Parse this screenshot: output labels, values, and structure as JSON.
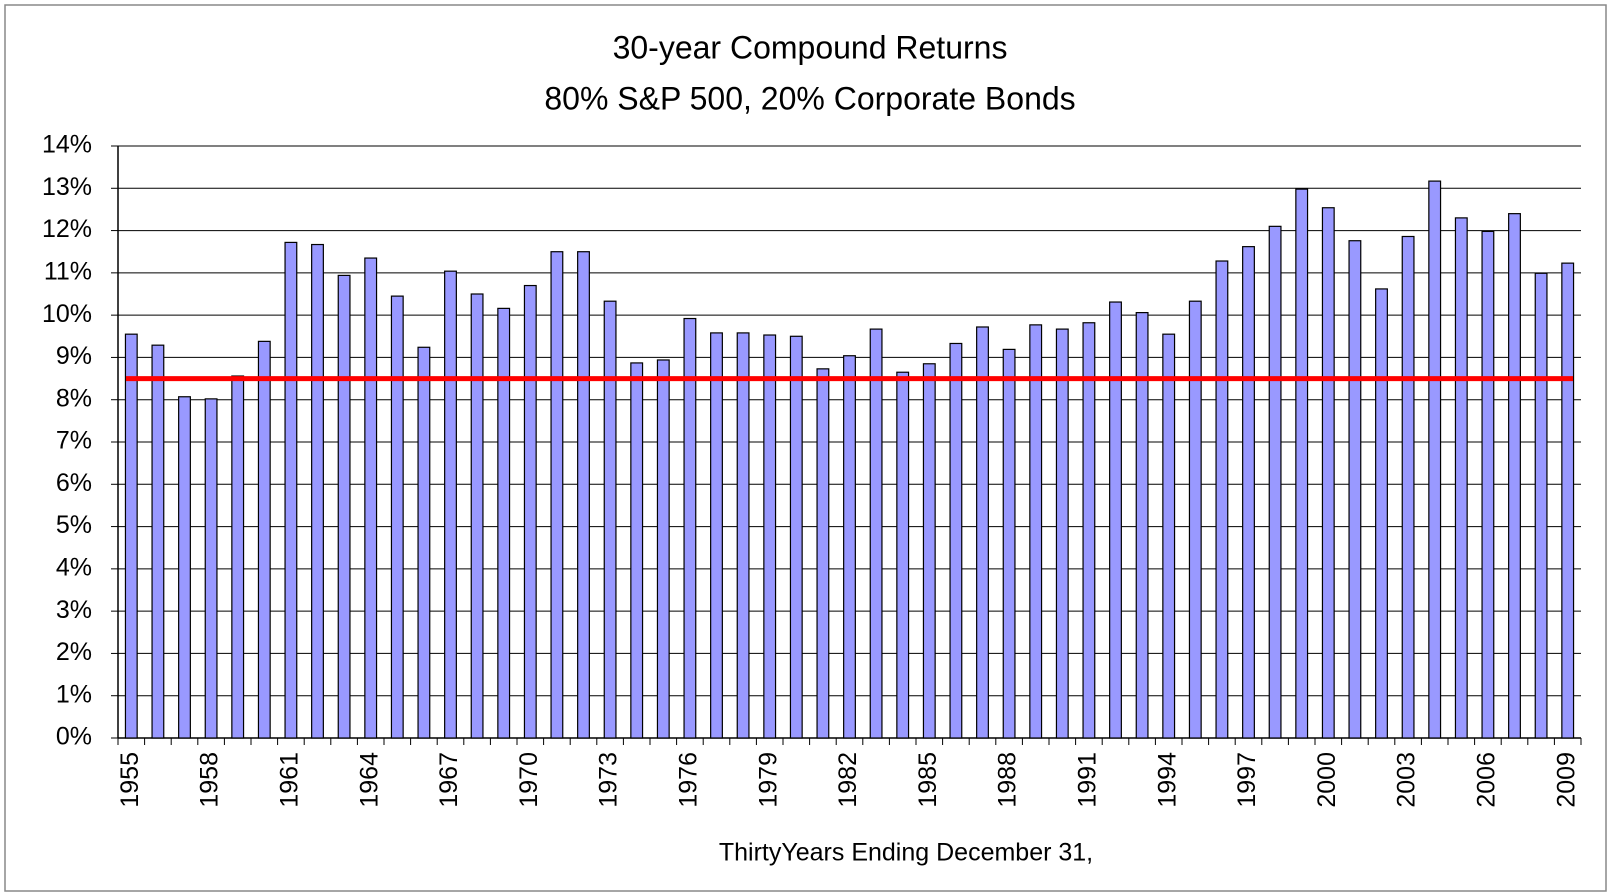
{
  "chart_data": {
    "type": "bar",
    "title": "30-year Compound Returns",
    "subtitle": "80% S&P 500, 20% Corporate Bonds",
    "x_label": "ThirtyYears Ending December 31,",
    "categories": [
      "1955",
      null,
      null,
      "1958",
      null,
      null,
      "1961",
      null,
      null,
      "1964",
      null,
      null,
      "1967",
      null,
      null,
      "1970",
      null,
      null,
      "1973",
      null,
      null,
      "1976",
      null,
      null,
      "1979",
      null,
      null,
      "1982",
      null,
      null,
      "1985",
      null,
      null,
      "1988",
      null,
      null,
      "1991",
      null,
      null,
      "1994",
      null,
      null,
      "1997",
      null,
      null,
      "2000",
      null,
      null,
      "2003",
      null,
      null,
      "2006",
      null,
      null,
      "2009"
    ],
    "values": [
      9.55,
      9.29,
      8.07,
      8.02,
      8.56,
      9.38,
      11.72,
      11.67,
      10.94,
      11.35,
      10.45,
      9.24,
      11.04,
      10.5,
      10.16,
      10.7,
      11.5,
      11.5,
      10.33,
      8.87,
      8.94,
      9.92,
      9.58,
      9.58,
      9.53,
      9.5,
      8.73,
      9.04,
      9.67,
      8.65,
      8.85,
      9.33,
      9.72,
      9.19,
      9.77,
      9.67,
      9.82,
      10.31,
      10.06,
      9.55,
      10.33,
      11.28,
      11.62,
      12.1,
      12.98,
      12.54,
      11.76,
      10.62,
      11.86,
      13.17,
      12.3,
      11.98,
      12.4,
      10.99,
      11.23
    ],
    "color": "#9999ff",
    "reference_line": {
      "value": 8.5,
      "color": "#ff0000"
    },
    "ylim": [
      0,
      14
    ],
    "yticks": [
      {
        "value": 0,
        "label": "0%"
      },
      {
        "value": 1,
        "label": "1%"
      },
      {
        "value": 2,
        "label": "2%"
      },
      {
        "value": 3,
        "label": "3%"
      },
      {
        "value": 4,
        "label": "4%"
      },
      {
        "value": 5,
        "label": "5%"
      },
      {
        "value": 6,
        "label": "6%"
      },
      {
        "value": 7,
        "label": "7%"
      },
      {
        "value": 8,
        "label": "8%"
      },
      {
        "value": 9,
        "label": "9%"
      },
      {
        "value": 10,
        "label": "10%"
      },
      {
        "value": 11,
        "label": "11%"
      },
      {
        "value": 12,
        "label": "12%"
      },
      {
        "value": 13,
        "label": "13%"
      },
      {
        "value": 14,
        "label": "14%"
      }
    ],
    "grid": true
  }
}
